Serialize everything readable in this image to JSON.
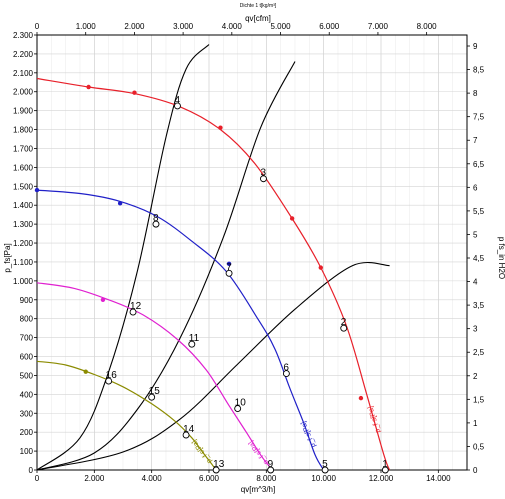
{
  "header": {
    "note": "Dichte 1 t[kg/m³]"
  },
  "axes": {
    "bottom_label": "qv[m^3/h]",
    "top_label": "qv[cfm]",
    "left_label": "p_fs[Pa]",
    "right_label": "p fs_in H2O"
  },
  "chart_data": {
    "type": "line",
    "xlim": [
      0,
      15000
    ],
    "ylim": [
      0,
      2300
    ],
    "x_ticks": [
      0,
      2000,
      4000,
      6000,
      8000,
      10000,
      12000,
      14000
    ],
    "x_tick_labels": [
      "0",
      "2.000",
      "4.000",
      "6.000",
      "8.000",
      "10.000",
      "12.000",
      "14.000"
    ],
    "y_ticks": [
      0,
      100,
      200,
      300,
      400,
      500,
      600,
      700,
      800,
      900,
      1000,
      1100,
      1200,
      1300,
      1400,
      1500,
      1600,
      1700,
      1800,
      1900,
      2000,
      2100,
      2200,
      2300
    ],
    "y_tick_labels": [
      "0",
      "100",
      "200",
      "300",
      "400",
      "500",
      "600",
      "700",
      "800",
      "900",
      "1.000",
      "1.100",
      "1.200",
      "1.300",
      "1.400",
      "1.500",
      "1.600",
      "1.700",
      "1.800",
      "1.900",
      "2.000",
      "2.100",
      "2.200",
      "2.300"
    ],
    "top_ticks_cfm": [
      0,
      1000,
      2000,
      3000,
      4000,
      5000,
      6000,
      7000,
      8000
    ],
    "top_tick_labels": [
      "0",
      "1.000",
      "2.000",
      "3.000",
      "4.000",
      "5.000",
      "6.000",
      "7.000",
      "8.000"
    ],
    "right_ticks_inh2o": [
      0,
      0.5,
      1,
      1.5,
      2,
      2.5,
      3,
      3.5,
      4,
      4.5,
      5,
      5.5,
      6,
      6.5,
      7,
      7.5,
      8,
      8.5,
      9
    ],
    "right_tick_labels": [
      "0",
      "0,5",
      "1",
      "1,5",
      "2",
      "2,5",
      "3",
      "3,5",
      "4",
      "4,5",
      "5",
      "5,5",
      "6",
      "6,5",
      "7",
      "7,5",
      "8",
      "8,5",
      "9"
    ],
    "fan_curves": [
      {
        "name": "p_f s[Pa]",
        "color": "#e8202a",
        "x": [
          0,
          1800,
          3400,
          5000,
          6400,
          7600,
          8900,
          9900,
          10800,
          11500,
          12100,
          12300
        ],
        "y": [
          2070,
          2025,
          1990,
          1920,
          1800,
          1620,
          1330,
          1070,
          760,
          400,
          80,
          0
        ],
        "marker_points": [
          [
            1800,
            2025
          ],
          [
            3400,
            1995
          ],
          [
            6400,
            1810
          ],
          [
            8900,
            1330
          ],
          [
            9900,
            1070
          ],
          [
            11300,
            380
          ]
        ]
      },
      {
        "name": "p_f s[Pa]",
        "color": "#2020c8",
        "x": [
          0,
          1600,
          2900,
          4200,
          5400,
          6600,
          7700,
          8300,
          8800,
          9300,
          9700,
          10000
        ],
        "y": [
          1480,
          1460,
          1420,
          1340,
          1210,
          1050,
          800,
          640,
          440,
          250,
          80,
          0
        ],
        "marker_points": [
          [
            0,
            1480
          ],
          [
            2900,
            1410
          ],
          [
            6700,
            1090
          ]
        ]
      },
      {
        "name": "p_f s[Pa]",
        "color": "#e020d0",
        "x": [
          0,
          1300,
          2500,
          3700,
          4900,
          5900,
          6700,
          7300,
          7800,
          8100,
          8200
        ],
        "y": [
          990,
          960,
          900,
          820,
          690,
          530,
          340,
          200,
          80,
          20,
          0
        ],
        "marker_points": [
          [
            2300,
            900
          ]
        ]
      },
      {
        "name": "p_f s[Pa]",
        "color": "#8b8b00",
        "x": [
          0,
          1000,
          2000,
          3000,
          4000,
          4800,
          5400,
          5800,
          6100,
          6250
        ],
        "y": [
          575,
          555,
          505,
          440,
          350,
          260,
          170,
          90,
          30,
          0
        ],
        "marker_points": [
          [
            1700,
            520
          ]
        ]
      }
    ],
    "system_curves": [
      {
        "x": [
          0,
          1500,
          2500,
          3500,
          4500,
          5200,
          6000
        ],
        "y": [
          0,
          170,
          520,
          1050,
          1760,
          2120,
          2250
        ]
      },
      {
        "x": [
          0,
          2000,
          3500,
          5000,
          6500,
          7800,
          9000
        ],
        "y": [
          0,
          90,
          320,
          700,
          1230,
          1810,
          2160
        ]
      },
      {
        "x": [
          0,
          3000,
          5000,
          7000,
          9000,
          11000,
          12300
        ],
        "y": [
          0,
          95,
          270,
          560,
          850,
          1080,
          1080
        ]
      }
    ],
    "operating_points": [
      {
        "label": "4",
        "x": 4900,
        "y": 1925
      },
      {
        "label": "8",
        "x": 4150,
        "y": 1300
      },
      {
        "label": "12",
        "x": 3350,
        "y": 835
      },
      {
        "label": "16",
        "x": 2500,
        "y": 470
      },
      {
        "label": "3",
        "x": 7900,
        "y": 1540
      },
      {
        "label": "7",
        "x": 6700,
        "y": 1040
      },
      {
        "label": "11",
        "x": 5400,
        "y": 665
      },
      {
        "label": "15",
        "x": 4000,
        "y": 385
      },
      {
        "label": "2",
        "x": 10700,
        "y": 750
      },
      {
        "label": "6",
        "x": 8700,
        "y": 510
      },
      {
        "label": "10",
        "x": 7000,
        "y": 325
      },
      {
        "label": "14",
        "x": 5200,
        "y": 185
      },
      {
        "label": "1",
        "x": 12150,
        "y": 0
      },
      {
        "label": "5",
        "x": 10050,
        "y": 0
      },
      {
        "label": "9",
        "x": 8150,
        "y": 0
      },
      {
        "label": "13",
        "x": 6250,
        "y": 0
      }
    ]
  }
}
